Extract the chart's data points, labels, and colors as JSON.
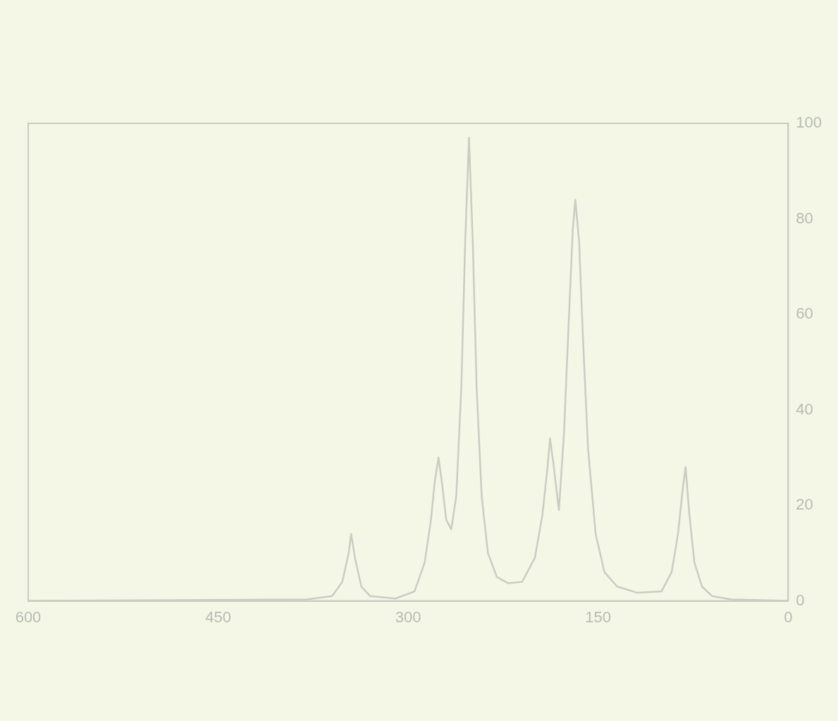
{
  "chart_data": {
    "type": "line",
    "color": "#c9cdc2",
    "x": [
      600,
      380,
      360,
      352,
      347,
      345,
      342,
      337,
      330,
      310,
      295,
      287,
      282,
      279,
      276,
      273,
      270,
      266,
      262,
      258,
      255,
      252,
      249,
      246,
      242,
      237,
      230,
      221,
      210,
      200,
      194,
      190,
      188,
      185,
      181,
      177,
      173,
      170,
      168,
      165,
      162,
      158,
      152,
      145,
      135,
      119,
      100,
      92,
      87,
      83,
      81,
      78,
      74,
      68,
      60,
      45,
      0
    ],
    "values": [
      0,
      0.3,
      1,
      4,
      10,
      14,
      9,
      3,
      1,
      0.5,
      2,
      8,
      17,
      25,
      30,
      24,
      17,
      15,
      22,
      45,
      75,
      97,
      75,
      45,
      22,
      10,
      5,
      3.7,
      4,
      9,
      18,
      28,
      34,
      28,
      19,
      35,
      60,
      78,
      84,
      75,
      55,
      32,
      14,
      6,
      3,
      1.7,
      2,
      6,
      14,
      24,
      28,
      18,
      8,
      3,
      1,
      0.3,
      0
    ],
    "xlim": [
      600,
      0
    ],
    "xticks": [
      600,
      450,
      300,
      150,
      0
    ],
    "ylim": [
      0,
      100
    ],
    "yticks": [
      0,
      20,
      40,
      60,
      80,
      100
    ],
    "grid": false,
    "legend": false,
    "marker": "none",
    "line_style": "solid"
  }
}
